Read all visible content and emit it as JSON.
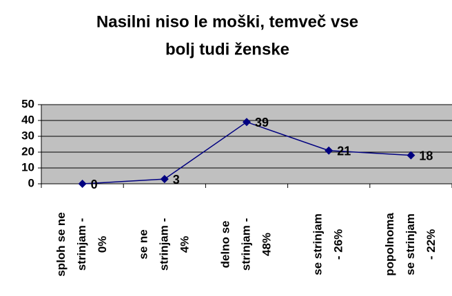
{
  "chart_data": {
    "type": "line",
    "title": [
      "Nasilni niso le moški, temveč vse",
      "bolj tudi ženske"
    ],
    "categories": [
      [
        "sploh se ne",
        "strinjam -",
        "0%"
      ],
      [
        "se ne",
        "strinjam -",
        "4%"
      ],
      [
        "delno se",
        "strinjam -",
        "48%"
      ],
      [
        "se strinjam",
        "- 26%"
      ],
      [
        "popolnoma",
        "se strinjam",
        "- 22%"
      ]
    ],
    "values": [
      0,
      3,
      39,
      21,
      18
    ],
    "color": "#000080",
    "plot_background": "#c0c0c0",
    "ylim": [
      0,
      50
    ],
    "yticks": [
      0,
      10,
      20,
      30,
      40,
      50
    ],
    "grid": true
  }
}
